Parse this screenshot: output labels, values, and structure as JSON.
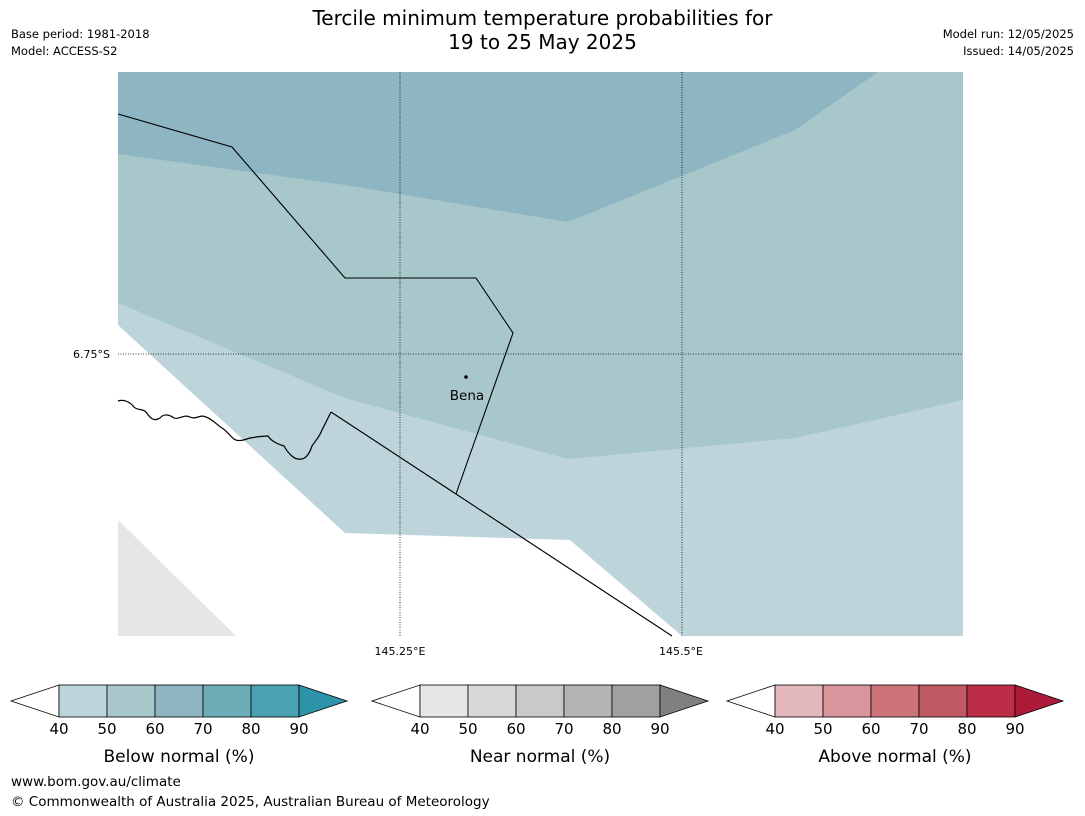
{
  "header": {
    "title_line1": "Tercile minimum temperature probabilities for",
    "title_line2": "19 to 25 May 2025",
    "base_period": "Base period: 1981-2018",
    "model": "Model: ACCESS-S2",
    "model_run": "Model run: 12/05/2025",
    "issued": "Issued: 14/05/2025"
  },
  "map": {
    "latitude_labels": [
      "6.75°S"
    ],
    "longitude_labels": [
      "145.25°E",
      "145.5°E"
    ],
    "place_label": "Bena",
    "category_colors": {
      "below_40_50": "#bdd4db",
      "below_50_60": "#a8c7cb",
      "below_60_70": "#8db6c2",
      "no_data": "#e6e6e6"
    }
  },
  "legends": [
    {
      "label": "Below normal (%)",
      "ticks": [
        "40",
        "50",
        "60",
        "70",
        "80",
        "90"
      ],
      "colors": [
        "#ffffff",
        "#bdd4db",
        "#a8c7cb",
        "#8db6c2",
        "#6dadb8",
        "#4aa1b1",
        "#2d93a8"
      ]
    },
    {
      "label": "Near normal (%)",
      "ticks": [
        "40",
        "50",
        "60",
        "70",
        "80",
        "90"
      ],
      "colors": [
        "#ffffff",
        "#e6e6e6",
        "#d8d8d8",
        "#c9c9c9",
        "#b4b4b4",
        "#a0a0a0",
        "#808080"
      ]
    },
    {
      "label": "Above normal (%)",
      "ticks": [
        "40",
        "50",
        "60",
        "70",
        "80",
        "90"
      ],
      "colors": [
        "#ffffff",
        "#e2b8bd",
        "#d8969c",
        "#cc747a",
        "#c15964",
        "#bc2e48",
        "#ad1a3a"
      ]
    }
  ],
  "footer": {
    "url": "www.bom.gov.au/climate",
    "copyright": "© Commonwealth of Australia 2025, Australian Bureau of Meteorology"
  }
}
